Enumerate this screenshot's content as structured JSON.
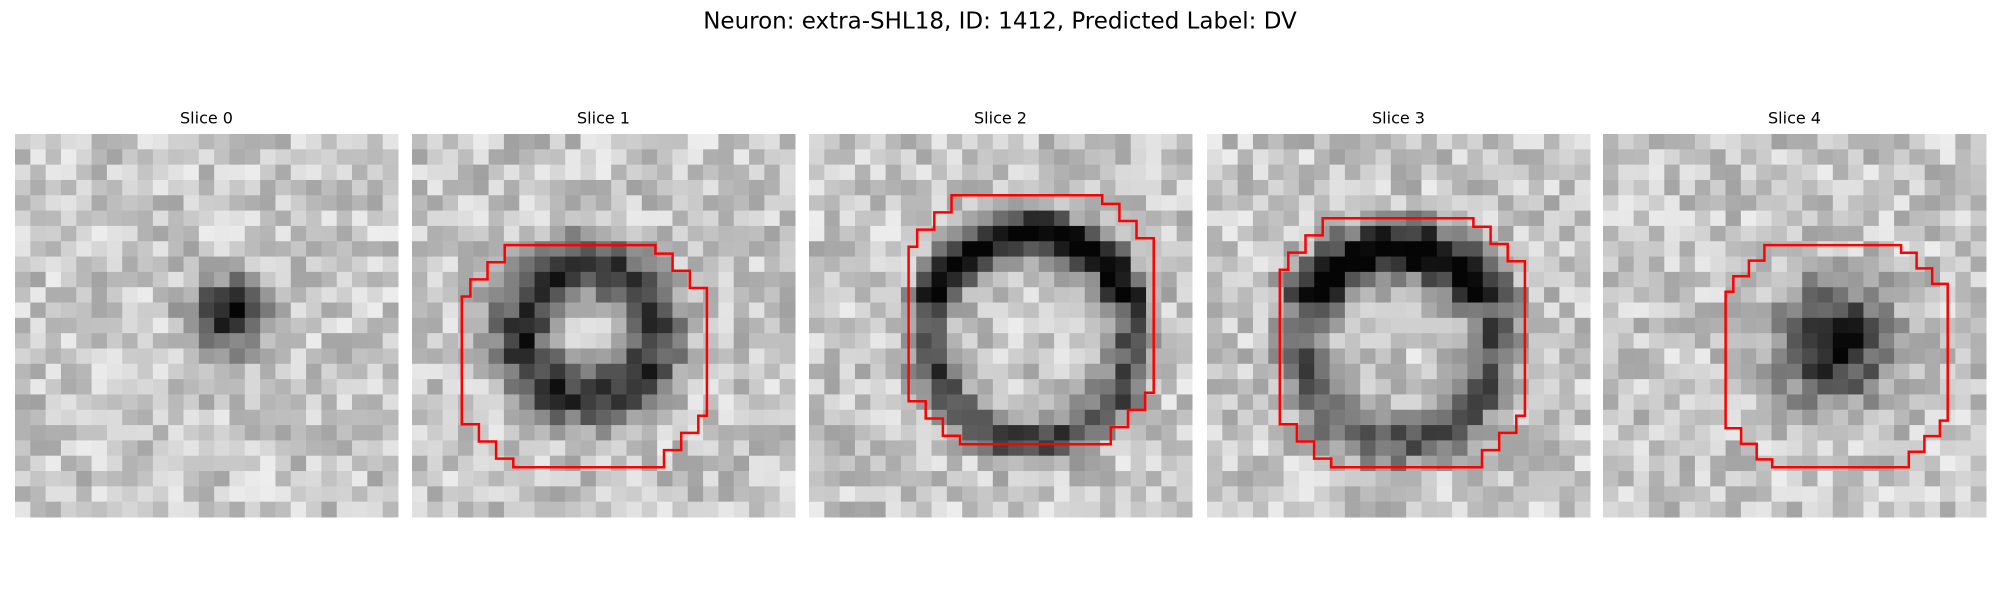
{
  "title": "Neuron: extra-SHL18, ID: 1412, Predicted Label: DV",
  "panels": [
    {
      "title": "Slice 0"
    },
    {
      "title": "Slice 1"
    },
    {
      "title": "Slice 2"
    },
    {
      "title": "Slice 3"
    },
    {
      "title": "Slice 4"
    }
  ]
}
